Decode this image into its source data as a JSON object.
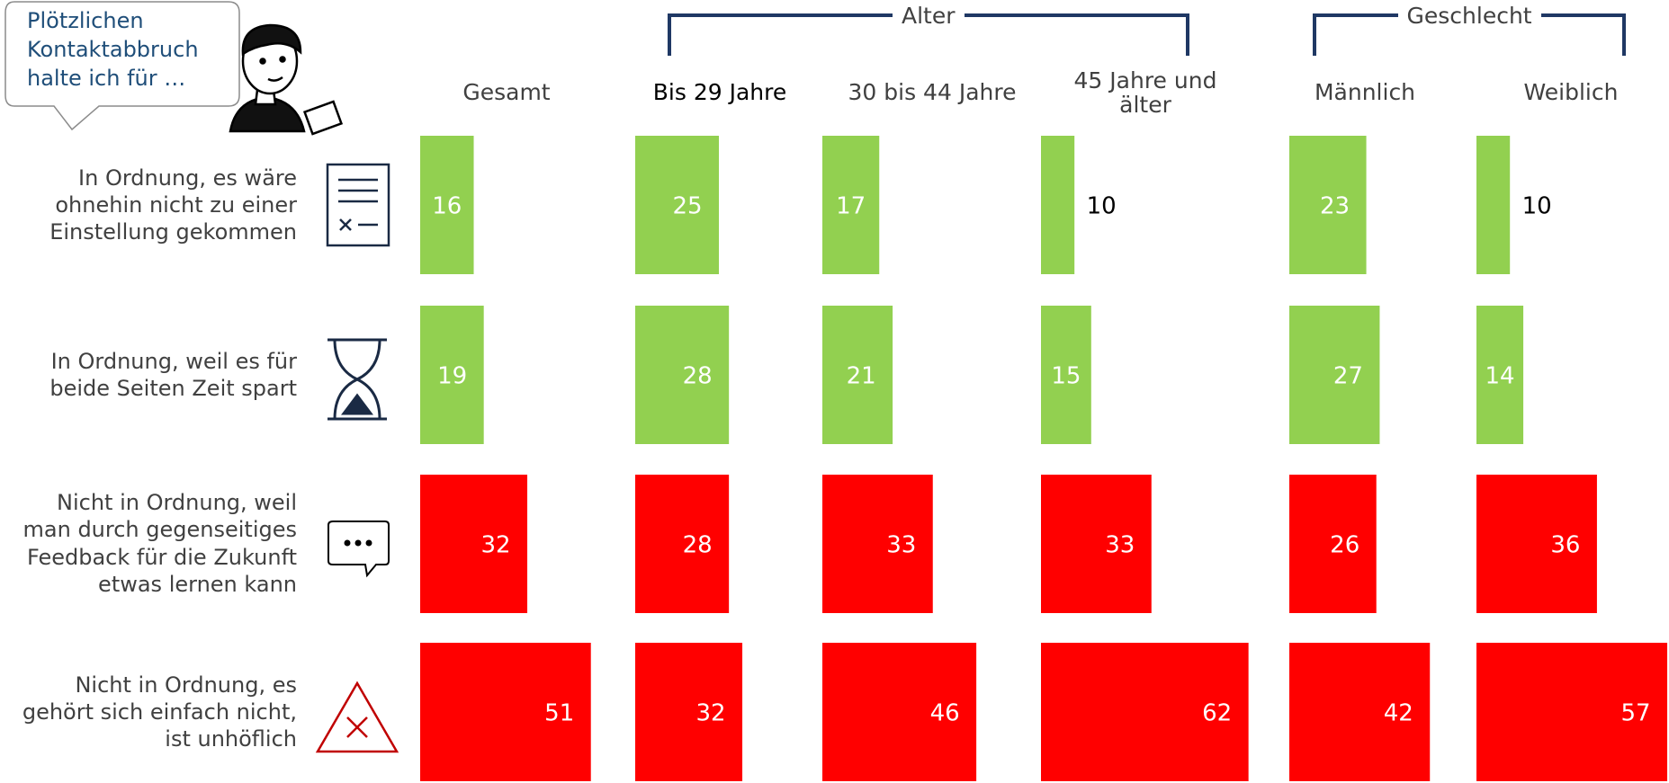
{
  "chart_data": {
    "type": "bar",
    "callout": "Plötzlichen\nKontaktabbruch\nhalte ich für …",
    "groups": [
      "Alter",
      "Geschlecht"
    ],
    "categories": [
      "In Ordnung, es wäre\nohnehin nicht zu einer\nEinstellung gekommen",
      "In Ordnung, weil es für\nbeide Seiten Zeit spart",
      "Nicht in Ordnung, weil\nman durch gegenseitiges\nFeedback für die Zukunft\netwas lernen kann",
      "Nicht in Ordnung, es\ngehört sich einfach nicht,\nist unhöflich"
    ],
    "category_colors": [
      "#92d050",
      "#92d050",
      "#ff0000",
      "#ff0000"
    ],
    "series": [
      {
        "name": "Gesamt",
        "values": [
          16,
          19,
          32,
          51
        ]
      },
      {
        "name": "Bis 29 Jahre",
        "values": [
          25,
          28,
          28,
          32
        ]
      },
      {
        "name": "30 bis 44 Jahre",
        "values": [
          17,
          21,
          33,
          46
        ]
      },
      {
        "name": "45 Jahre und\nälter",
        "values": [
          10,
          15,
          33,
          62
        ]
      },
      {
        "name": "Männlich",
        "values": [
          23,
          27,
          26,
          42
        ]
      },
      {
        "name": "Weiblich",
        "values": [
          10,
          14,
          36,
          57
        ]
      }
    ]
  }
}
